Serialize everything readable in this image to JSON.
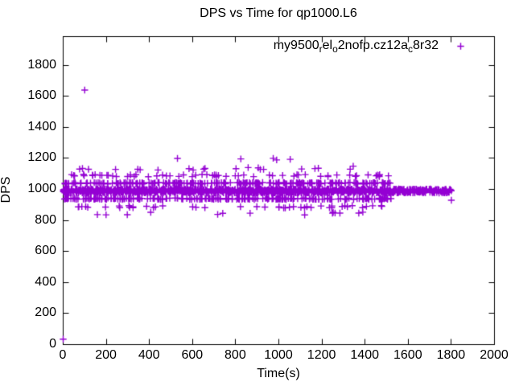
{
  "chart_data": {
    "type": "scatter",
    "title": "DPS vs Time for qp1000.L6",
    "xlabel": "Time(s)",
    "ylabel": "DPS",
    "xlim": [
      0,
      2000
    ],
    "ylim": [
      0,
      1985
    ],
    "xticks": [
      0,
      200,
      400,
      600,
      800,
      1000,
      1200,
      1400,
      1600,
      1800,
      2000
    ],
    "yticks": [
      0,
      200,
      400,
      600,
      800,
      1000,
      1200,
      1400,
      1600,
      1800
    ],
    "grid": false,
    "legend_position": "top-right-inside",
    "marker_color": "#9400D3",
    "axis_color": "#000000",
    "background_color": "#ffffff",
    "series": [
      {
        "name": "my9500_rel_o2nofp.cz12a_c8r32",
        "name_segments": [
          {
            "text": "my9500",
            "subscript": false
          },
          {
            "text": "r",
            "subscript": true
          },
          {
            "text": "el",
            "subscript": false
          },
          {
            "text": "o",
            "subscript": true
          },
          {
            "text": "2nofp.cz12a",
            "subscript": false
          },
          {
            "text": "c",
            "subscript": true
          },
          {
            "text": "8r32",
            "subscript": false
          }
        ],
        "marker": "plus",
        "color": "#9400D3",
        "dense_band": {
          "y_center": 990,
          "y_halfwidth": 13,
          "x_start": 0,
          "x_end": 1800,
          "count": 1300
        },
        "scatter_rows": [
          {
            "y": 1040,
            "jitter": 5,
            "x_start": 5,
            "x_end": 1525,
            "count": 230
          },
          {
            "y": 940,
            "jitter": 5,
            "x_start": 5,
            "x_end": 1525,
            "count": 230
          },
          {
            "y": 1090,
            "jitter": 8,
            "x_start": 25,
            "x_end": 1515,
            "count": 60
          },
          {
            "y": 888,
            "jitter": 8,
            "x_start": 60,
            "x_end": 1510,
            "count": 45
          },
          {
            "y": 1135,
            "jitter": 10,
            "x_start": 70,
            "x_end": 1460,
            "count": 20
          },
          {
            "y": 845,
            "jitter": 10,
            "x_start": 150,
            "x_end": 1430,
            "count": 14
          },
          {
            "y": 1195,
            "jitter": 6,
            "x_start": 500,
            "x_end": 1090,
            "count": 3
          }
        ],
        "notable_points": [
          [
            0,
            35
          ],
          [
            100,
            1640
          ],
          [
            530,
            1200
          ],
          [
            990,
            1190
          ],
          [
            1345,
            1150
          ],
          [
            1800,
            930
          ]
        ]
      }
    ],
    "render_seed": 7
  }
}
